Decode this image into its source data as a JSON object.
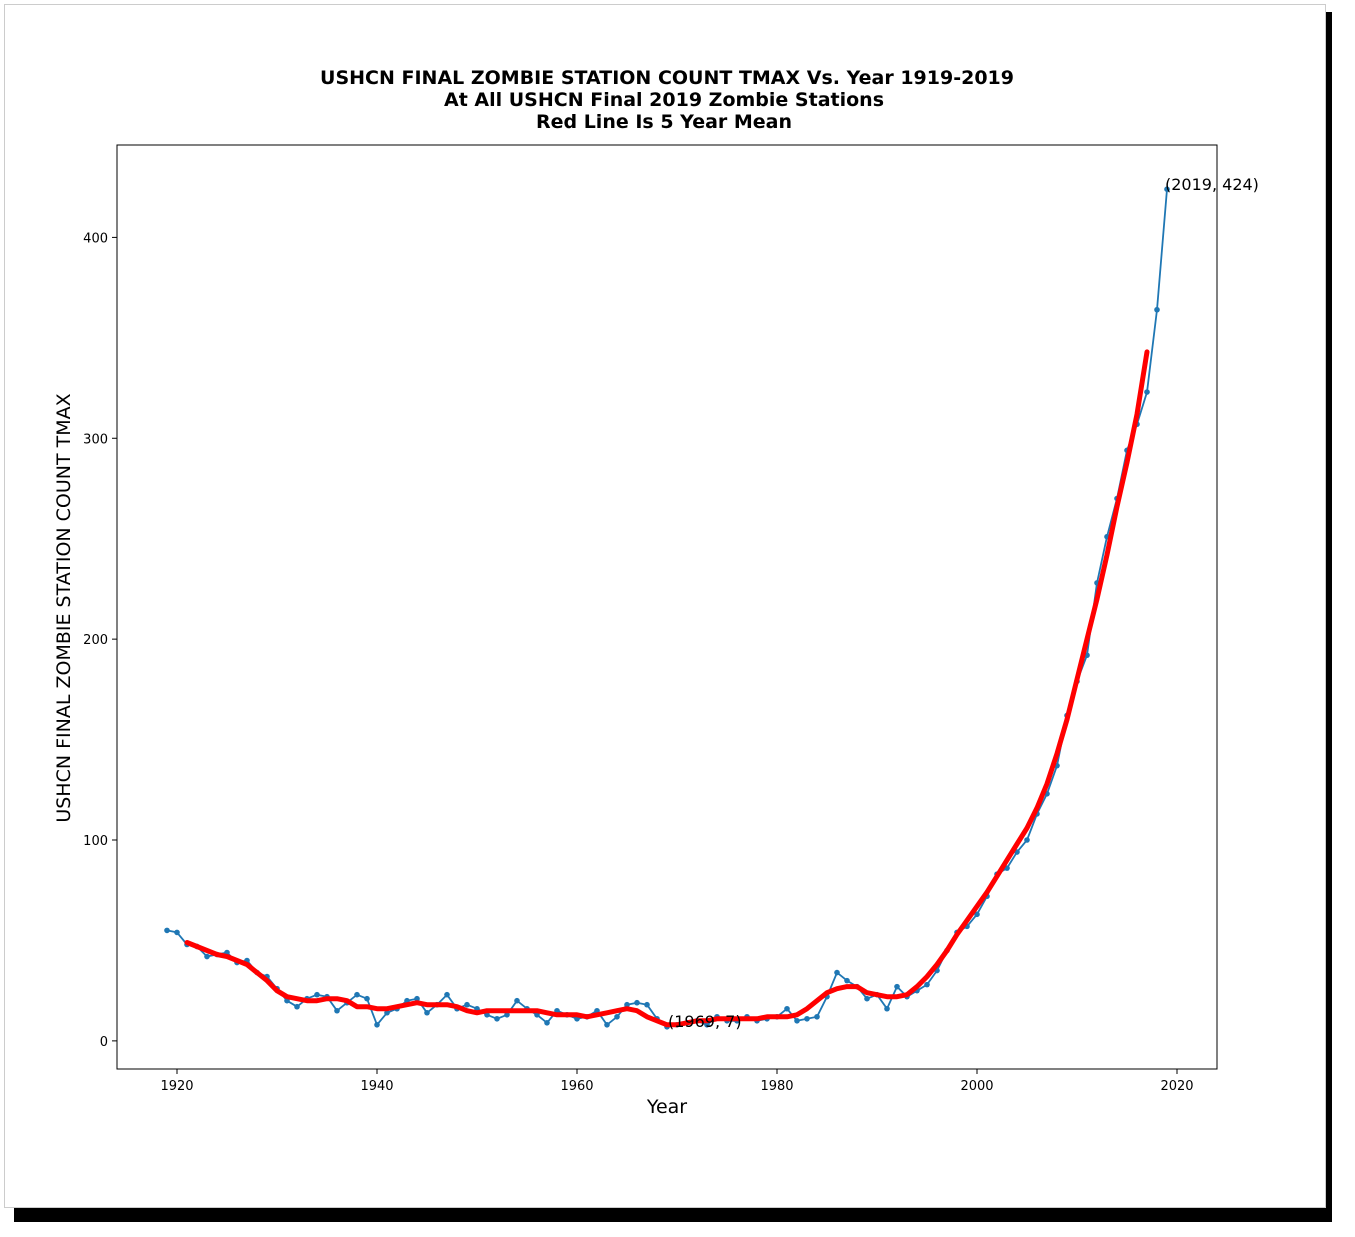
{
  "chart_data": {
    "type": "line",
    "title_lines": [
      "USHCN FINAL ZOMBIE STATION COUNT TMAX Vs. Year 1919-2019",
      "At All USHCN Final 2019 Zombie Stations",
      "Red Line Is 5 Year Mean"
    ],
    "xlabel": "Year",
    "ylabel": "USHCN FINAL ZOMBIE STATION COUNT TMAX",
    "xlim": [
      1914,
      2024
    ],
    "ylim": [
      -14,
      446
    ],
    "xticks": [
      1920,
      1940,
      1960,
      1980,
      2000,
      2020
    ],
    "yticks": [
      0,
      100,
      200,
      300,
      400
    ],
    "grid": false,
    "colors": {
      "series": "#1f77b4",
      "mean": "#ff0000"
    },
    "series": [
      {
        "x": [
          1919,
          1920,
          1921,
          1922,
          1923,
          1924,
          1925,
          1926,
          1927,
          1928,
          1929,
          1930,
          1931,
          1932,
          1933,
          1934,
          1935,
          1936,
          1937,
          1938,
          1939,
          1940,
          1941,
          1942,
          1943,
          1944,
          1945,
          1946,
          1947,
          1948,
          1949,
          1950,
          1951,
          1952,
          1953,
          1954,
          1955,
          1956,
          1957,
          1958,
          1959,
          1960,
          1961,
          1962,
          1963,
          1964,
          1965,
          1966,
          1967,
          1968,
          1969,
          1970,
          1971,
          1972,
          1973,
          1974,
          1975,
          1976,
          1977,
          1978,
          1979,
          1980,
          1981,
          1982,
          1983,
          1984,
          1985,
          1986,
          1987,
          1988,
          1989,
          1990,
          1991,
          1992,
          1993,
          1994,
          1995,
          1996,
          1997,
          1998,
          1999,
          2000,
          2001,
          2002,
          2003,
          2004,
          2005,
          2006,
          2007,
          2008,
          2009,
          2010,
          2011,
          2012,
          2013,
          2014,
          2015,
          2016,
          2017,
          2018,
          2019
        ],
        "values": [
          55,
          54,
          48,
          47,
          42,
          43,
          44,
          39,
          40,
          34,
          32,
          26,
          20,
          17,
          21,
          23,
          22,
          15,
          19,
          23,
          21,
          8,
          14,
          16,
          20,
          21,
          14,
          18,
          23,
          16,
          18,
          16,
          13,
          11,
          13,
          20,
          16,
          13,
          9,
          15,
          13,
          11,
          12,
          15,
          8,
          12,
          18,
          19,
          18,
          11,
          7,
          8,
          9,
          10,
          8,
          12,
          10,
          10,
          12,
          10,
          11,
          12,
          16,
          10,
          11,
          12,
          22,
          34,
          30,
          27,
          21,
          23,
          16,
          27,
          22,
          25,
          28,
          35,
          45,
          54,
          57,
          63,
          72,
          83,
          86,
          94,
          100,
          113,
          123,
          137,
          162,
          179,
          192,
          228,
          251,
          270,
          294,
          307,
          323,
          364,
          424
        ]
      },
      {
        "x": [
          1921,
          1922,
          1923,
          1924,
          1925,
          1926,
          1927,
          1928,
          1929,
          1930,
          1931,
          1932,
          1933,
          1934,
          1935,
          1936,
          1937,
          1938,
          1939,
          1940,
          1941,
          1942,
          1943,
          1944,
          1945,
          1946,
          1947,
          1948,
          1949,
          1950,
          1951,
          1952,
          1953,
          1954,
          1955,
          1956,
          1957,
          1958,
          1959,
          1960,
          1961,
          1962,
          1963,
          1964,
          1965,
          1966,
          1967,
          1968,
          1969,
          1970,
          1971,
          1972,
          1973,
          1974,
          1975,
          1976,
          1977,
          1978,
          1979,
          1980,
          1981,
          1982,
          1983,
          1984,
          1985,
          1986,
          1987,
          1988,
          1989,
          1990,
          1991,
          1992,
          1993,
          1994,
          1995,
          1996,
          1997,
          1998,
          1999,
          2000,
          2001,
          2002,
          2003,
          2004,
          2005,
          2006,
          2007,
          2008,
          2009,
          2010,
          2011,
          2012,
          2013,
          2014,
          2015,
          2016,
          2017
        ],
        "values": [
          49,
          47,
          45,
          43,
          42,
          40,
          38,
          34,
          30,
          25,
          22,
          21,
          20,
          20,
          21,
          21,
          20,
          17,
          17,
          16,
          16,
          17,
          18,
          19,
          18,
          18,
          18,
          17,
          15,
          14,
          15,
          15,
          15,
          15,
          15,
          15,
          14,
          13,
          13,
          13,
          12,
          13,
          14,
          15,
          16,
          15,
          12,
          10,
          8,
          8,
          9,
          10,
          10,
          11,
          11,
          11,
          11,
          11,
          12,
          12,
          12,
          13,
          16,
          20,
          24,
          26,
          27,
          27,
          24,
          23,
          22,
          22,
          23,
          27,
          32,
          38,
          45,
          53,
          60,
          67,
          74,
          82,
          90,
          98,
          106,
          116,
          128,
          143,
          160,
          180,
          200,
          220,
          242,
          266,
          288,
          312,
          343
        ]
      }
    ],
    "annotations": [
      "(2019, 424)",
      "(1969, 7)"
    ]
  }
}
